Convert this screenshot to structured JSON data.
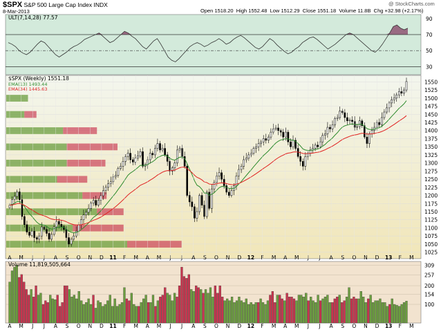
{
  "header": {
    "symbol": "$SPX",
    "name": "S&P 500 Large Cap Index",
    "exchange": "INDX",
    "date": "8-Mar-2013",
    "open_label": "Open",
    "open": "1518.20",
    "high_label": "High",
    "high": "1552.48",
    "low_label": "Low",
    "low": "1512.29",
    "close_label": "Close",
    "close": "1551.18",
    "volume_label": "Volume",
    "volume": "11.8B",
    "chg_label": "Chg",
    "chg": "+32.98 (+2.17%)",
    "watermark": "@ StockCharts.com"
  },
  "colors": {
    "up": "#6b9e3f",
    "down": "#c8344e",
    "ema13": "#2e8b2e",
    "ema34": "#e02020",
    "ult_panel": "#d3eadb",
    "vol_panel": "#f2e3cf",
    "price_top": "#f3f6ee",
    "price_bottom": "#f1e6b8"
  },
  "chart_data": [
    {
      "type": "line",
      "panel": "oscillator",
      "indicator": "ULT(7,14,28)",
      "last_value": 77.57,
      "label": "ULT(7,14,28) 77.57",
      "y_ticks": [
        30,
        50,
        70,
        90
      ],
      "reference_lines": [
        30,
        50,
        70
      ],
      "ylim": [
        20,
        95
      ],
      "values": [
        60,
        58,
        55,
        50,
        47,
        45,
        48,
        53,
        58,
        62,
        60,
        55,
        50,
        45,
        42,
        45,
        48,
        52,
        55,
        57,
        60,
        64,
        66,
        68,
        70,
        72,
        68,
        64,
        60,
        62,
        66,
        70,
        74,
        72,
        68,
        65,
        60,
        55,
        52,
        57,
        62,
        65,
        58,
        50,
        42,
        38,
        36,
        40,
        45,
        50,
        55,
        58,
        60,
        58,
        55,
        57,
        60,
        62,
        65,
        62,
        58,
        60,
        64,
        67,
        69,
        66,
        62,
        58,
        54,
        52,
        55,
        60,
        65,
        62,
        57,
        53,
        49,
        46,
        48,
        52,
        55,
        60,
        63,
        66,
        67,
        64,
        60,
        56,
        52,
        55,
        58,
        62,
        66,
        70,
        72,
        70,
        66,
        62,
        58,
        54,
        50,
        48,
        52,
        58,
        65,
        72,
        80,
        82,
        78,
        76,
        78
      ]
    },
    {
      "type": "candlestick",
      "panel": "price",
      "label": "$SPX (Weekly) 1551.18",
      "ema13_label": "EMA(13) 1493.44",
      "ema34_label": "EMA(34) 1445.63",
      "period": "weekly",
      "ylim": [
        1005,
        1570
      ],
      "y_ticks": [
        1025,
        1050,
        1075,
        1100,
        1125,
        1150,
        1175,
        1200,
        1225,
        1250,
        1275,
        1300,
        1325,
        1350,
        1375,
        1400,
        1425,
        1450,
        1475,
        1500,
        1525,
        1550
      ],
      "x_labels": [
        "A",
        "M",
        "J",
        "J",
        "A",
        "S",
        "O",
        "N",
        "D",
        "11",
        "F",
        "M",
        "A",
        "M",
        "J",
        "J",
        "A",
        "S",
        "O",
        "N",
        "D",
        "12",
        "F",
        "M",
        "A",
        "M",
        "J",
        "J",
        "A",
        "S",
        "O",
        "N",
        "D",
        "13",
        "F",
        "M",
        "A"
      ],
      "closes": [
        1170,
        1187,
        1197,
        1211,
        1187,
        1135,
        1110,
        1087,
        1077,
        1090,
        1070,
        1065,
        1075,
        1103,
        1095,
        1083,
        1065,
        1080,
        1103,
        1120,
        1111,
        1104,
        1095,
        1070,
        1050,
        1065,
        1075,
        1090,
        1110,
        1125,
        1140,
        1148,
        1160,
        1176,
        1185,
        1170,
        1185,
        1199,
        1215,
        1225,
        1236,
        1242,
        1257,
        1262,
        1283,
        1290,
        1305,
        1320,
        1330,
        1310,
        1303,
        1315,
        1322,
        1335,
        1290,
        1295,
        1310,
        1330,
        1325,
        1345,
        1360,
        1340,
        1345,
        1325,
        1305,
        1275,
        1285,
        1300,
        1340,
        1345,
        1320,
        1290,
        1200,
        1180,
        1165,
        1130,
        1150,
        1200,
        1170,
        1135,
        1210,
        1160,
        1220,
        1240,
        1260,
        1270,
        1250,
        1230,
        1210,
        1200,
        1215,
        1230,
        1260,
        1280,
        1290,
        1310,
        1315,
        1325,
        1330,
        1345,
        1350,
        1360,
        1365,
        1375,
        1370,
        1380,
        1395,
        1405,
        1408,
        1400,
        1395,
        1380,
        1395,
        1365,
        1350,
        1370,
        1345,
        1320,
        1305,
        1290,
        1320,
        1330,
        1340,
        1345,
        1355,
        1350,
        1365,
        1385,
        1390,
        1410,
        1405,
        1418,
        1437,
        1440,
        1460,
        1455,
        1440,
        1430,
        1432,
        1428,
        1410,
        1412,
        1430,
        1415,
        1380,
        1360,
        1390,
        1400,
        1410,
        1425,
        1418,
        1440,
        1457,
        1470,
        1485,
        1495,
        1500,
        1510,
        1520,
        1515,
        1525,
        1551
      ],
      "volume_profile": [
        {
          "price_low": 1025,
          "price_high": 1075,
          "up": 1.0,
          "down": 0.45
        },
        {
          "price_low": 1075,
          "price_high": 1125,
          "up": 0.55,
          "down": 0.42
        },
        {
          "price_low": 1125,
          "price_high": 1175,
          "up": 0.75,
          "down": 0.22
        },
        {
          "price_low": 1175,
          "price_high": 1225,
          "up": 0.63,
          "down": 0.2
        },
        {
          "price_low": 1225,
          "price_high": 1275,
          "up": 0.42,
          "down": 0.25
        },
        {
          "price_low": 1275,
          "price_high": 1325,
          "up": 0.5,
          "down": 0.32
        },
        {
          "price_low": 1325,
          "price_high": 1375,
          "up": 0.5,
          "down": 0.42
        },
        {
          "price_low": 1375,
          "price_high": 1425,
          "up": 0.47,
          "down": 0.28
        },
        {
          "price_low": 1425,
          "price_high": 1475,
          "up": 0.15,
          "down": 0.1
        },
        {
          "price_low": 1475,
          "price_high": 1525,
          "up": 0.18,
          "down": 0.0
        }
      ]
    },
    {
      "type": "bar",
      "panel": "volume",
      "label": "Volume 11,819,505,664",
      "unit": "B",
      "y_ticks": [
        100,
        154,
        200,
        257,
        309
      ],
      "ylim": [
        0,
        330
      ],
      "values": [
        220,
        280,
        300,
        310,
        245,
        260,
        220,
        180,
        150,
        180,
        140,
        200,
        150,
        160,
        100,
        120,
        110,
        150,
        130,
        125,
        150,
        90,
        110,
        200,
        200,
        180,
        140,
        150,
        130,
        170,
        120,
        100,
        110,
        130,
        100,
        150,
        80,
        120,
        110,
        90,
        100,
        120,
        150,
        90,
        130,
        90,
        100,
        110,
        190,
        130,
        120,
        160,
        100,
        90,
        90,
        110,
        130,
        150,
        110,
        110,
        150,
        90,
        120,
        140,
        150,
        190,
        160,
        150,
        120,
        160,
        140,
        200,
        300,
        250,
        240,
        260,
        180,
        170,
        200,
        190,
        180,
        160,
        180,
        160,
        190,
        140,
        200,
        160,
        200,
        140,
        120,
        130,
        120,
        140,
        110,
        120,
        140,
        120,
        110,
        130,
        100,
        110,
        100,
        110,
        110,
        130,
        110,
        100,
        120,
        150,
        170,
        110,
        150,
        150,
        130,
        120,
        160,
        140,
        140,
        130,
        120,
        150,
        150,
        140,
        160,
        120,
        140,
        120,
        110,
        150,
        120,
        130,
        140,
        150,
        110,
        110,
        130,
        140,
        150,
        110,
        120,
        140,
        190,
        130,
        140,
        130,
        130,
        170,
        140,
        110,
        130,
        150,
        110,
        120,
        120,
        130,
        110,
        110,
        90,
        100,
        130,
        100,
        95,
        90,
        100,
        110,
        118
      ]
    }
  ]
}
